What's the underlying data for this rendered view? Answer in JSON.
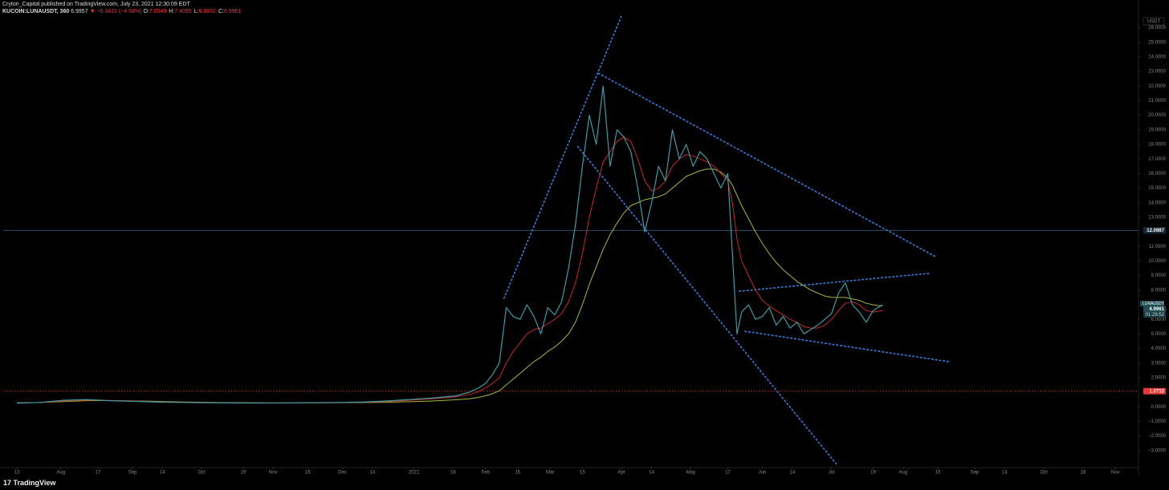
{
  "header": {
    "author_line": "Cryton_Capital published on TradingView.com, July 23, 2021 12:30:09 EDT",
    "symbol": "KUCOIN:LUNAUSDT, 360",
    "price": "6.9957",
    "change": "▼ −0.3431 (−4.68%)",
    "ohlc": [
      {
        "label": "O:",
        "value": "7.0549"
      },
      {
        "label": "H:",
        "value": "7.4095"
      },
      {
        "label": "L:",
        "value": "6.8832"
      },
      {
        "label": "C:",
        "value": "6.9961"
      }
    ]
  },
  "footer": {
    "logo": "17",
    "brand": "TradingView"
  },
  "chart_data": {
    "type": "line",
    "currency": "USDT",
    "xlim": [
      -6,
      486
    ],
    "ylim": [
      -4,
      26.8
    ],
    "xticks": [
      {
        "value": 0,
        "label": "13"
      },
      {
        "value": 19,
        "label": "Aug"
      },
      {
        "value": 35,
        "label": "17"
      },
      {
        "value": 50,
        "label": "Sep"
      },
      {
        "value": 63,
        "label": "14"
      },
      {
        "value": 80,
        "label": "Oct"
      },
      {
        "value": 98,
        "label": "19"
      },
      {
        "value": 111,
        "label": "Nov"
      },
      {
        "value": 126,
        "label": "16"
      },
      {
        "value": 141,
        "label": "Dec"
      },
      {
        "value": 154,
        "label": "14"
      },
      {
        "value": 172,
        "label": "2021"
      },
      {
        "value": 189,
        "label": "18"
      },
      {
        "value": 203,
        "label": "Feb"
      },
      {
        "value": 217,
        "label": "15"
      },
      {
        "value": 231,
        "label": "Mar"
      },
      {
        "value": 245,
        "label": "15"
      },
      {
        "value": 262,
        "label": "Apr"
      },
      {
        "value": 275,
        "label": "14"
      },
      {
        "value": 292,
        "label": "May"
      },
      {
        "value": 308,
        "label": "17"
      },
      {
        "value": 323,
        "label": "Jun"
      },
      {
        "value": 336,
        "label": "14"
      },
      {
        "value": 353,
        "label": "Jul"
      },
      {
        "value": 371,
        "label": "19"
      },
      {
        "value": 384,
        "label": "Aug"
      },
      {
        "value": 399,
        "label": "16"
      },
      {
        "value": 415,
        "label": "Sep"
      },
      {
        "value": 428,
        "label": "14"
      },
      {
        "value": 445,
        "label": "Oct"
      },
      {
        "value": 462,
        "label": "18"
      },
      {
        "value": 476,
        "label": "Nov"
      }
    ],
    "yticks": [
      {
        "value": 26,
        "label": "26.0000"
      },
      {
        "value": 25,
        "label": "25.0000"
      },
      {
        "value": 24,
        "label": "24.0000"
      },
      {
        "value": 23,
        "label": "23.0000"
      },
      {
        "value": 22,
        "label": "22.0000"
      },
      {
        "value": 21,
        "label": "21.0000"
      },
      {
        "value": 20,
        "label": "20.0000"
      },
      {
        "value": 19,
        "label": "19.0000"
      },
      {
        "value": 18,
        "label": "18.0000"
      },
      {
        "value": 17,
        "label": "17.0000"
      },
      {
        "value": 16,
        "label": "16.0000"
      },
      {
        "value": 15,
        "label": "15.0000"
      },
      {
        "value": 14,
        "label": "14.0000"
      },
      {
        "value": 13,
        "label": "13.0000"
      },
      {
        "value": 11,
        "label": "11.0000"
      },
      {
        "value": 10,
        "label": "10.0000"
      },
      {
        "value": 9,
        "label": "9.0000"
      },
      {
        "value": 8,
        "label": "8.0000"
      },
      {
        "value": 6,
        "label": "6.0000"
      },
      {
        "value": 5,
        "label": "5.0000"
      },
      {
        "value": 4,
        "label": "4.0000"
      },
      {
        "value": 3,
        "label": "3.0000"
      },
      {
        "value": 2,
        "label": "2.0000"
      },
      {
        "value": 0,
        "label": "0.0000"
      },
      {
        "value": -1,
        "label": "−1.0000"
      },
      {
        "value": -2,
        "label": "−2.0000"
      },
      {
        "value": -3,
        "label": "−3.0000"
      }
    ],
    "grid": false,
    "x": [
      0,
      10,
      20,
      30,
      40,
      50,
      60,
      70,
      80,
      90,
      100,
      110,
      120,
      130,
      140,
      150,
      160,
      170,
      180,
      190,
      196,
      200,
      203,
      206,
      209,
      212,
      215,
      218,
      221,
      224,
      227,
      230,
      233,
      236,
      239,
      242,
      245,
      248,
      251,
      254,
      257,
      260,
      263,
      266,
      269,
      272,
      275,
      278,
      281,
      284,
      287,
      290,
      293,
      296,
      299,
      302,
      305,
      308,
      310,
      312,
      314,
      317,
      320,
      323,
      326,
      329,
      332,
      335,
      338,
      341,
      344,
      347,
      350,
      353,
      356,
      359,
      362,
      365,
      368,
      371,
      375
    ],
    "series": [
      {
        "color": "#3f9aa3",
        "values": [
          0.25,
          0.3,
          0.45,
          0.5,
          0.42,
          0.38,
          0.33,
          0.3,
          0.28,
          0.27,
          0.26,
          0.26,
          0.27,
          0.28,
          0.3,
          0.33,
          0.4,
          0.5,
          0.6,
          0.75,
          1.0,
          1.3,
          1.6,
          2.2,
          3.0,
          6.8,
          6.2,
          6.0,
          7.0,
          6.2,
          5.0,
          6.8,
          6.3,
          7.2,
          9.5,
          12.5,
          16.5,
          20.0,
          18.0,
          22.0,
          16.5,
          19.0,
          18.5,
          17.5,
          15.0,
          12.0,
          14.0,
          16.5,
          15.5,
          19.0,
          17.0,
          18.0,
          16.5,
          17.5,
          17.0,
          16.0,
          15.0,
          16.0,
          10.5,
          5.0,
          6.5,
          7.0,
          6.0,
          6.2,
          6.8,
          5.6,
          6.2,
          5.4,
          5.8,
          5.0,
          5.3,
          5.6,
          6.0,
          6.4,
          7.8,
          8.5,
          7.0,
          6.5,
          5.8,
          6.6,
          7.0
        ]
      },
      {
        "color": "#c62828",
        "values": [
          0.27,
          0.3,
          0.4,
          0.46,
          0.44,
          0.4,
          0.35,
          0.31,
          0.29,
          0.28,
          0.27,
          0.26,
          0.26,
          0.27,
          0.29,
          0.31,
          0.36,
          0.45,
          0.55,
          0.68,
          0.85,
          1.05,
          1.3,
          1.6,
          2.0,
          3.0,
          3.8,
          4.4,
          5.0,
          5.3,
          5.4,
          5.7,
          6.0,
          6.4,
          7.2,
          8.5,
          10.5,
          13.0,
          15.0,
          16.8,
          17.5,
          18.2,
          18.5,
          18.2,
          17.0,
          15.5,
          14.8,
          15.0,
          15.5,
          16.5,
          17.0,
          17.3,
          17.2,
          17.0,
          16.8,
          16.5,
          16.0,
          15.5,
          14.0,
          11.5,
          10.0,
          9.0,
          8.0,
          7.3,
          6.9,
          6.6,
          6.3,
          6.0,
          5.8,
          5.5,
          5.4,
          5.4,
          5.6,
          6.0,
          6.6,
          7.1,
          7.2,
          7.0,
          6.6,
          6.5,
          6.6
        ]
      },
      {
        "color": "#a8b838",
        "values": [
          0.28,
          0.3,
          0.36,
          0.42,
          0.43,
          0.41,
          0.38,
          0.34,
          0.31,
          0.29,
          0.28,
          0.27,
          0.27,
          0.27,
          0.28,
          0.29,
          0.31,
          0.35,
          0.4,
          0.48,
          0.55,
          0.65,
          0.75,
          0.9,
          1.1,
          1.5,
          1.9,
          2.3,
          2.7,
          3.1,
          3.4,
          3.8,
          4.1,
          4.5,
          5.0,
          5.8,
          7.0,
          8.4,
          9.6,
          10.8,
          11.8,
          12.6,
          13.3,
          13.8,
          14.0,
          14.2,
          14.3,
          14.4,
          14.6,
          15.0,
          15.4,
          15.8,
          16.0,
          16.2,
          16.3,
          16.3,
          16.1,
          15.7,
          15.2,
          14.5,
          13.8,
          12.9,
          12.0,
          11.2,
          10.5,
          9.9,
          9.4,
          9.0,
          8.6,
          8.3,
          8.0,
          7.8,
          7.6,
          7.5,
          7.5,
          7.5,
          7.4,
          7.3,
          7.1,
          7.0,
          6.9
        ]
      }
    ],
    "trendlines": [
      {
        "x": [
          211,
          262
        ],
        "values": [
          7.44,
          26.83
        ],
        "color": "#3b7ddd"
      },
      {
        "x": [
          252,
          398
        ],
        "values": [
          22.87,
          10.3
        ],
        "color": "#3b7ddd"
      },
      {
        "x": [
          243,
          355
        ],
        "values": [
          17.85,
          -3.91
        ],
        "color": "#3b7ddd"
      },
      {
        "x": [
          313,
          395
        ],
        "values": [
          7.93,
          9.15
        ],
        "color": "#3b7ddd"
      },
      {
        "x": [
          315.5,
          404
        ],
        "values": [
          5.18,
          3.09
        ],
        "color": "#3b7ddd"
      }
    ],
    "price_lines": [
      {
        "value": 12.0987,
        "color": "#2e5a7a",
        "style": "solid"
      },
      {
        "value": 1.0715,
        "color": "#e53935",
        "style": "dotted"
      }
    ],
    "last": {
      "symbol": "LUNAUSDT",
      "value": 6.9961,
      "countdown": "01:29:52"
    }
  }
}
